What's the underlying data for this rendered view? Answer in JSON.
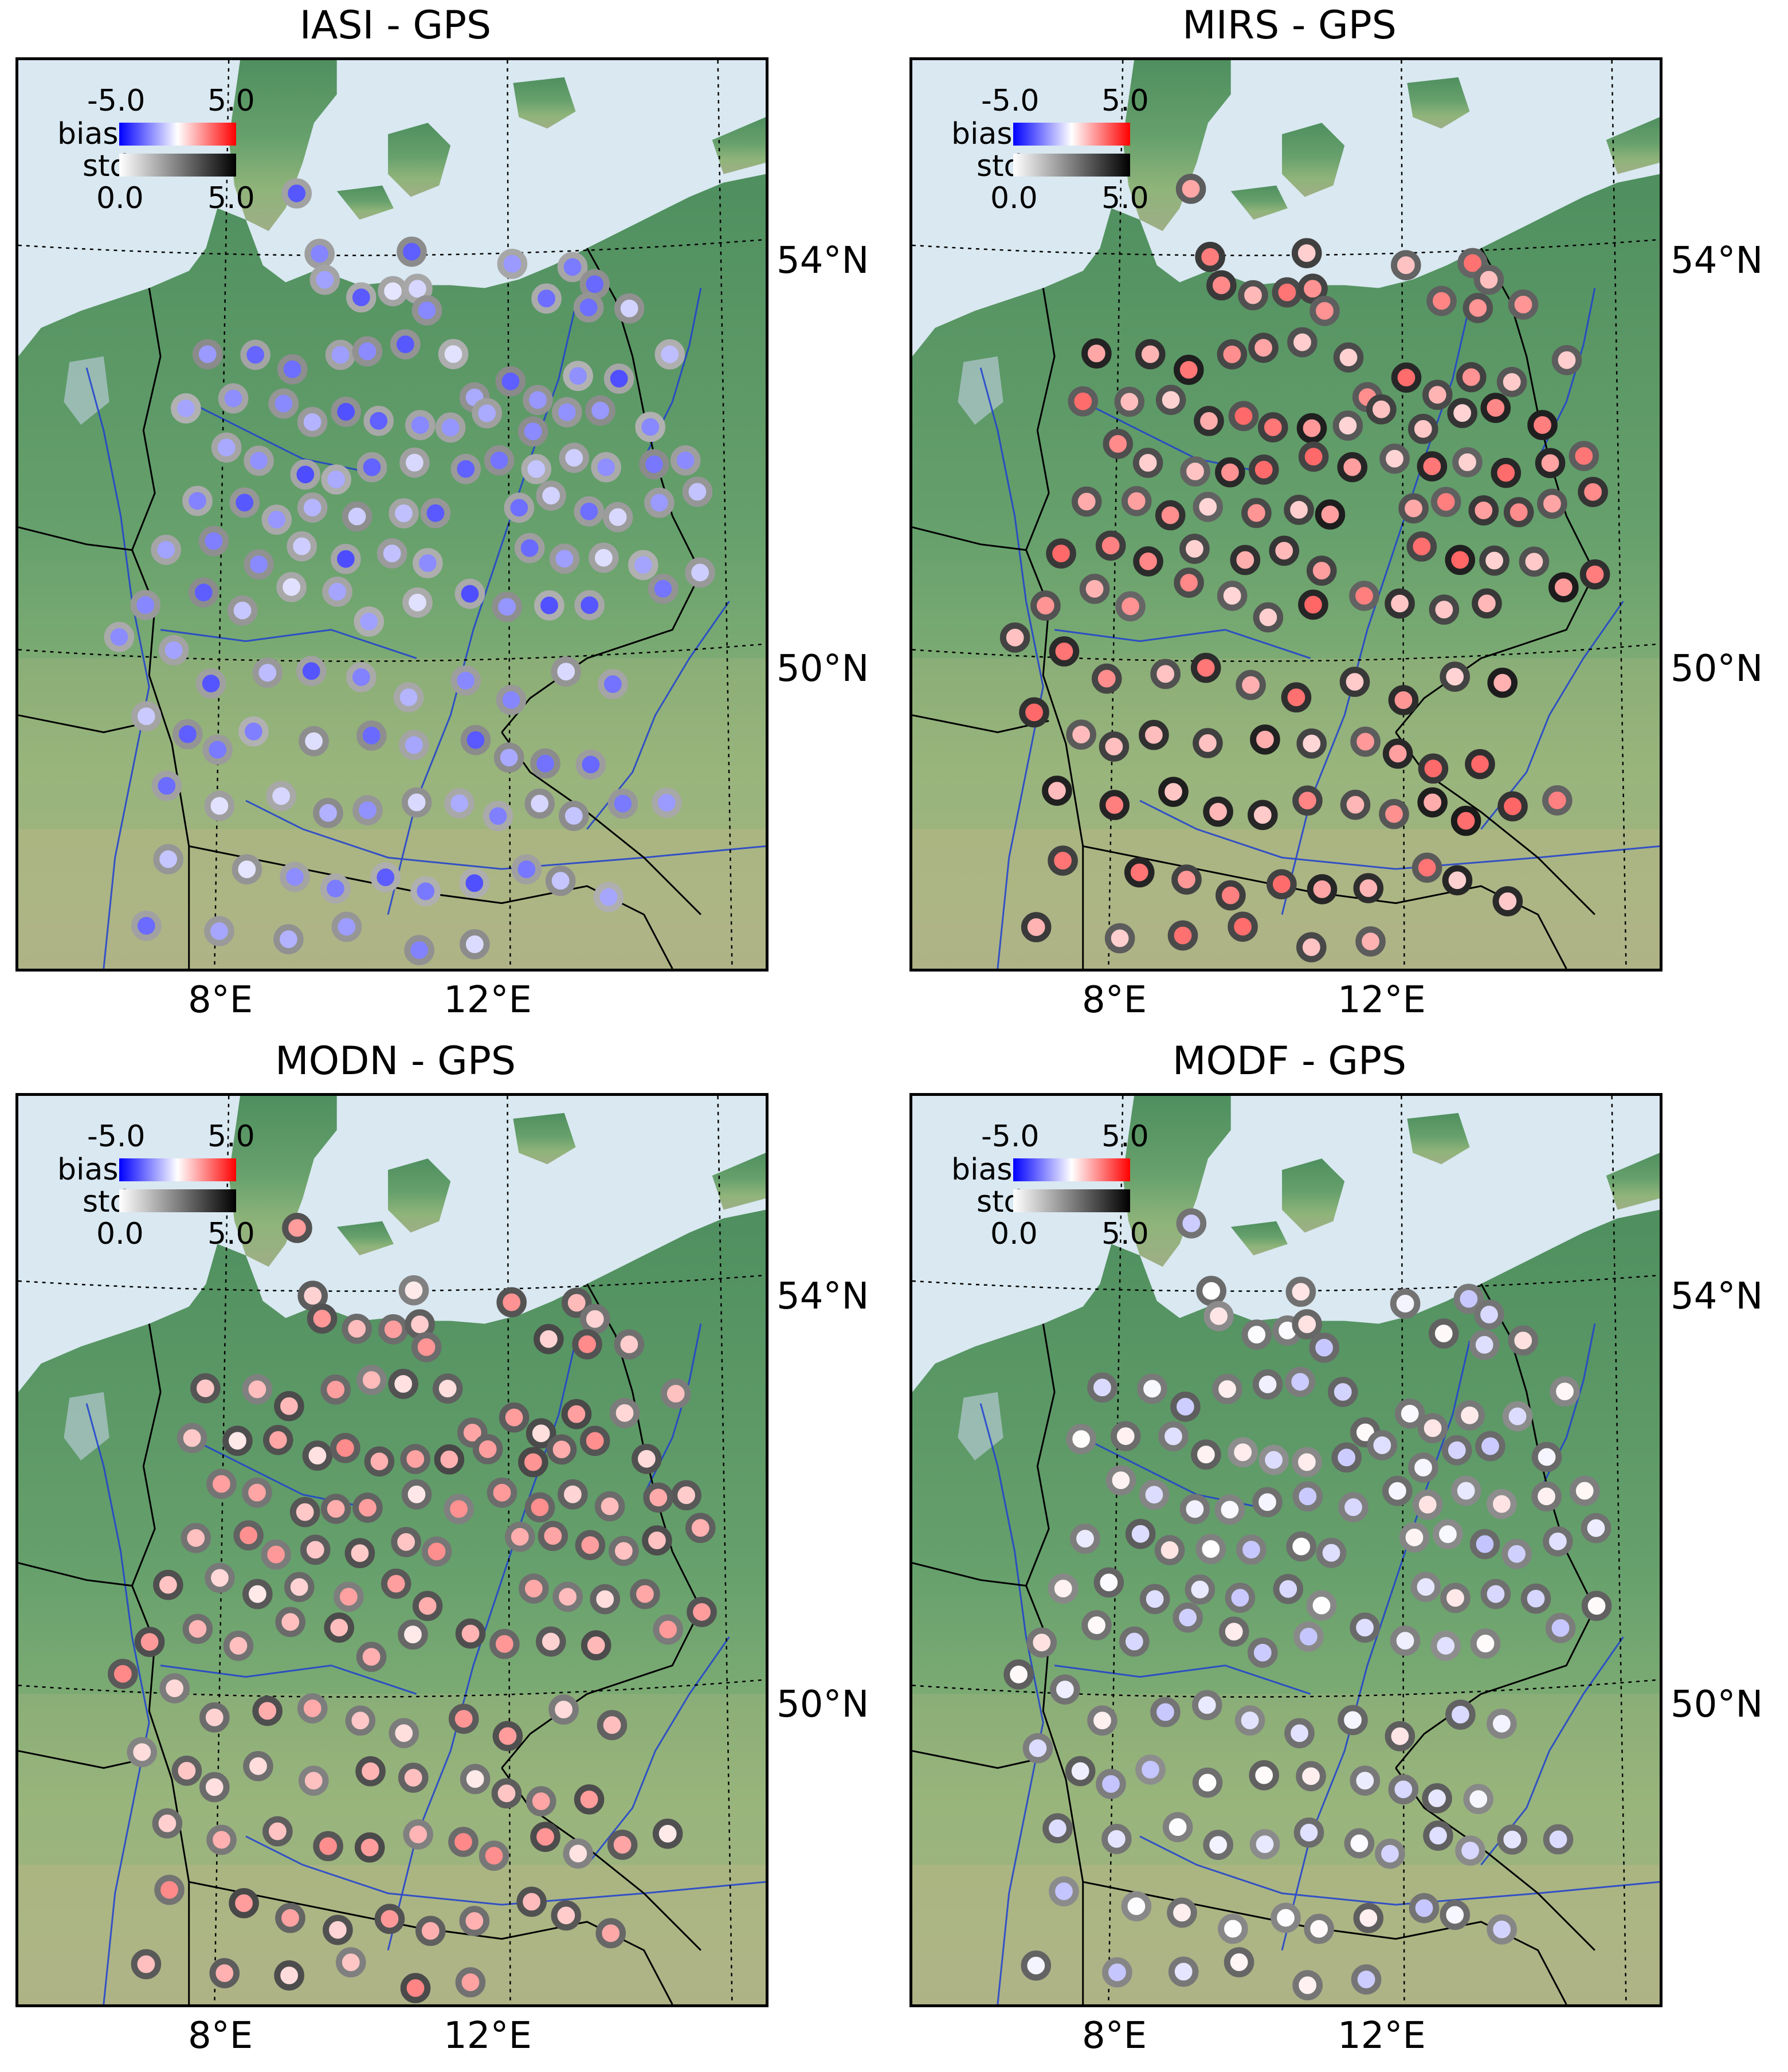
{
  "panels": [
    {
      "title": "IASI - GPS",
      "legend": {
        "bias_label": "bias:",
        "std_label": "std:",
        "bias_min": "-5.0",
        "bias_max": "5.0",
        "std_min": "0.0",
        "std_max": "5.0"
      },
      "lat_labels": [
        "54°N",
        "50°N"
      ],
      "lon_labels": [
        "8°E",
        "12°E"
      ],
      "stations_style": "mostly negative bias (blue fill), low std (light grey ring)"
    },
    {
      "title": "MIRS - GPS",
      "legend": {
        "bias_label": "bias:",
        "std_label": "std:",
        "bias_min": "-5.0",
        "bias_max": "5.0",
        "std_min": "0.0",
        "std_max": "5.0"
      },
      "lat_labels": [
        "54°N",
        "50°N"
      ],
      "lon_labels": [
        "8°E",
        "12°E"
      ],
      "stations_style": "mostly positive bias (red fill), high std (dark ring)"
    },
    {
      "title": "MODN - GPS",
      "legend": {
        "bias_label": "bias:",
        "std_label": "std:",
        "bias_min": "-5.0",
        "bias_max": "5.0",
        "std_min": "0.0",
        "std_max": "5.0"
      },
      "lat_labels": [
        "54°N",
        "50°N"
      ],
      "lon_labels": [
        "8°E",
        "12°E"
      ],
      "stations_style": "positive bias (light red fill), medium-high std (grey ring)"
    },
    {
      "title": "MODF - GPS",
      "legend": {
        "bias_label": "bias:",
        "std_label": "std:",
        "bias_min": "-5.0",
        "bias_max": "5.0",
        "std_min": "0.0",
        "std_max": "5.0"
      },
      "lat_labels": [
        "54°N",
        "50°N"
      ],
      "lon_labels": [
        "8°E",
        "12°E"
      ],
      "stations_style": "near-zero bias (white/pale fill), medium std (grey ring)"
    }
  ],
  "colors": {
    "bias_negative": "#0000ff",
    "bias_zero": "#ffffff",
    "bias_positive": "#ff0000",
    "std_low": "#ffffff",
    "std_high": "#000000",
    "sea": "#d8e7f0",
    "land": "#5f9a6b",
    "rivers": "#1f3fd0",
    "borders": "#000000"
  }
}
